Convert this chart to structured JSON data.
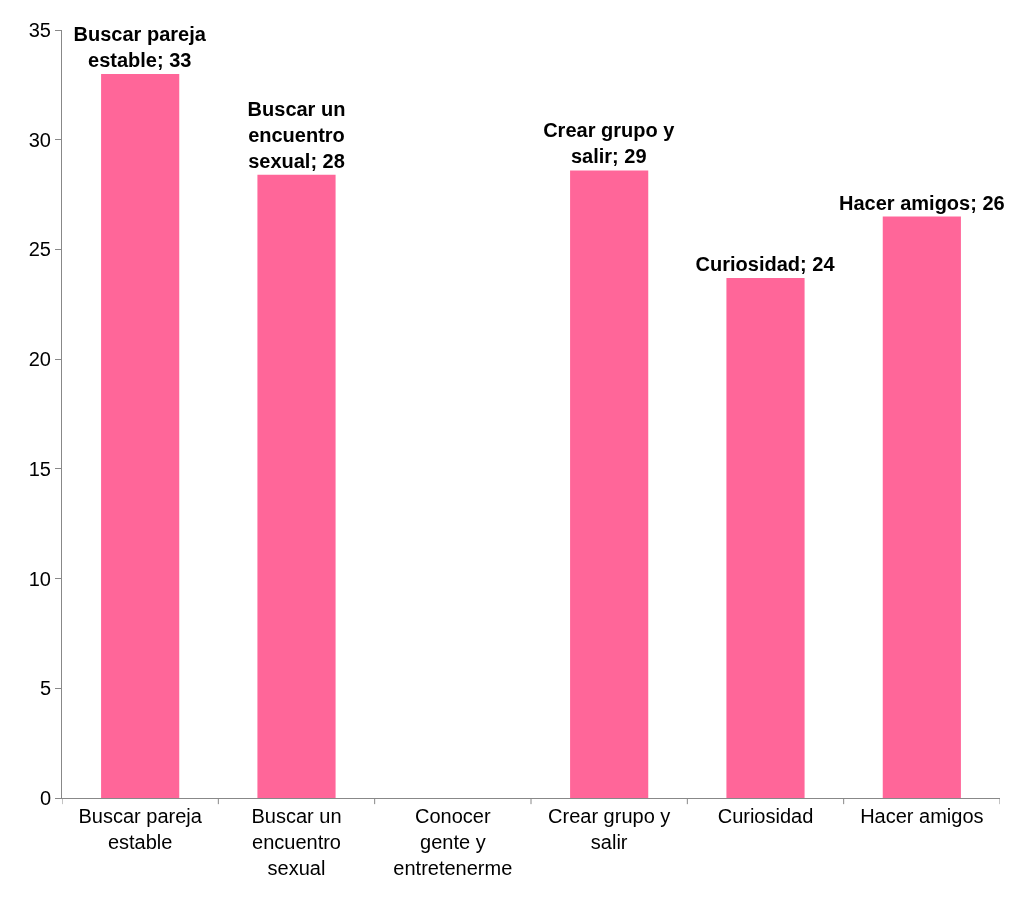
{
  "chart_data": {
    "type": "bar",
    "categories": [
      "Buscar pareja estable",
      "Buscar un encuentro sexual",
      "Conocer gente y entretenerme",
      "Crear grupo y salir",
      "Curiosidad",
      "Hacer amigos"
    ],
    "values": [
      33,
      28.4,
      null,
      28.6,
      23.7,
      26.5
    ],
    "value_labels": [
      "Buscar pareja estable; 33",
      "Buscar un encuentro sexual; 28",
      null,
      "Crear grupo y salir; 29",
      "Curiosidad; 24",
      "Hacer amigos; 26"
    ],
    "color": "#ff6699",
    "ylim": [
      0,
      35
    ],
    "yticks": [
      0,
      5,
      10,
      15,
      20,
      25,
      30,
      35
    ]
  }
}
